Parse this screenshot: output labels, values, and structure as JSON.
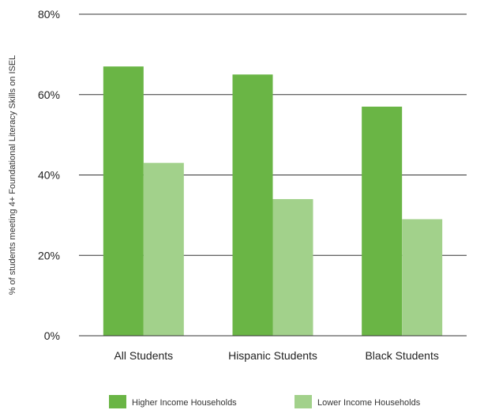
{
  "chart_data": {
    "type": "bar",
    "categories": [
      "All Students",
      "Hispanic Students",
      "Black Students"
    ],
    "series": [
      {
        "name": "Higher Income Households",
        "values": [
          67,
          65,
          57
        ],
        "color": "#6ab545"
      },
      {
        "name": "Lower Income Households",
        "values": [
          43,
          34,
          29
        ],
        "color": "#a2d18b"
      }
    ],
    "ylabel": "% of students meeting 4+ Foundational Literacy Skills on ISEL",
    "xlabel": "",
    "title": "",
    "ylim": [
      0,
      80
    ],
    "yticks": [
      "0%",
      "20%",
      "40%",
      "60%",
      "80%"
    ],
    "ytick_values": [
      0,
      20,
      40,
      60,
      80
    ],
    "grid": true,
    "legend_position": "bottom-center"
  }
}
